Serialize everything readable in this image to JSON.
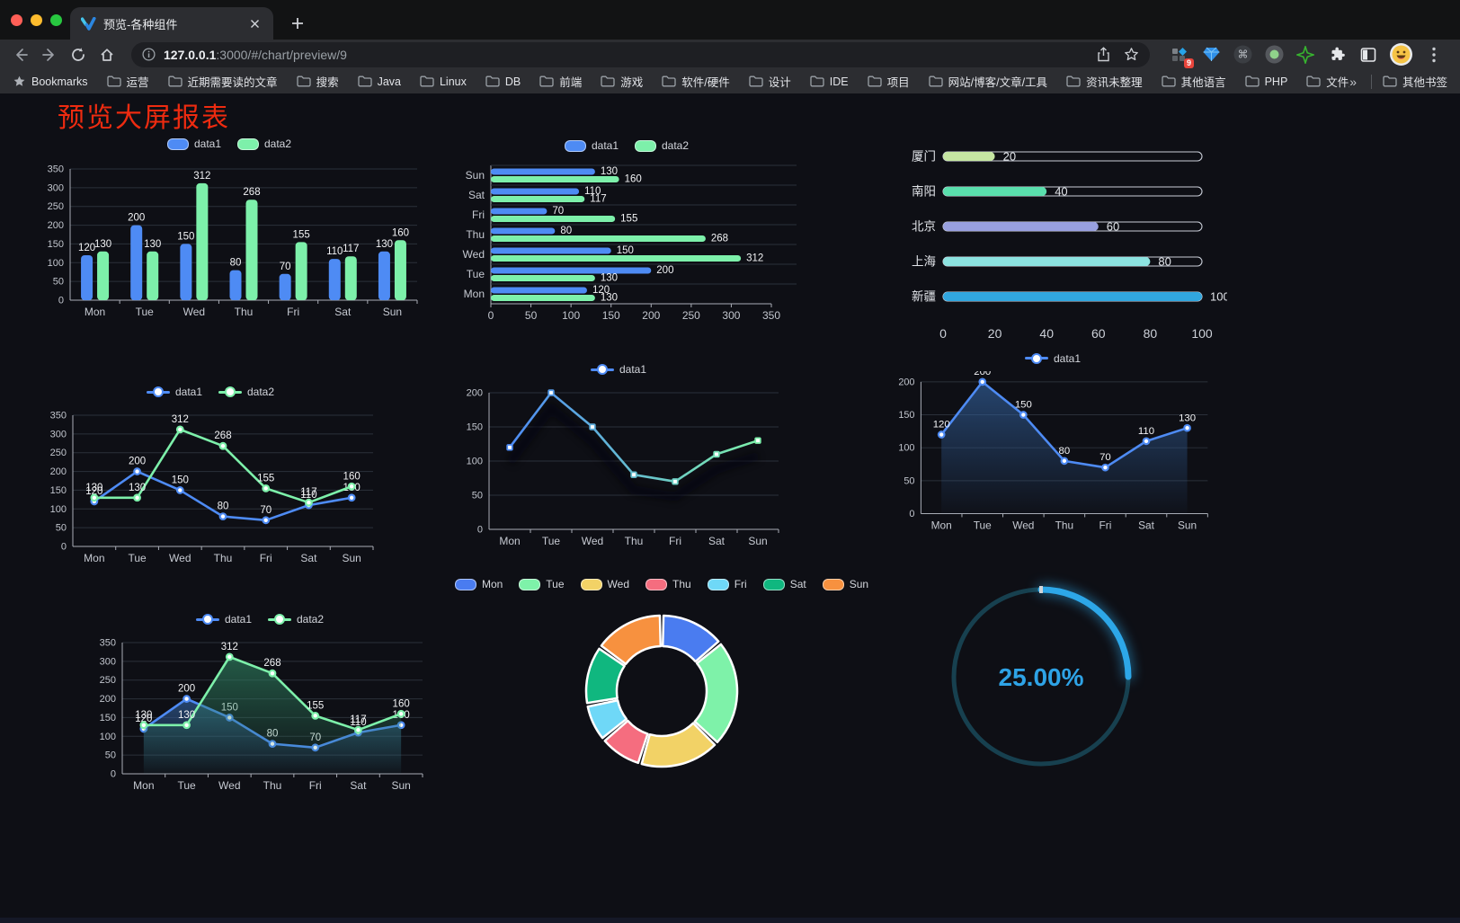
{
  "browser": {
    "tab_title": "预览-各种组件",
    "url_host": "127.0.0.1",
    "url_rest": ":3000/#/chart/preview/9",
    "bookmarks_label": "Bookmarks",
    "bookmarks": [
      "运营",
      "近期需要读的文章",
      "搜索",
      "Java",
      "Linux",
      "DB",
      "前端",
      "游戏",
      "软件/硬件",
      "设计",
      "IDE",
      "项目",
      "网站/博客/文章/工具",
      "资讯未整理",
      "其他语言",
      "PHP",
      "文件服务器"
    ],
    "bookmarks_overflow": "»",
    "other_bookmarks": "其他书签",
    "extension_badge": "9"
  },
  "page": {
    "title": "预览大屏报表"
  },
  "chart_data": [
    {
      "type": "bar",
      "categories": [
        "Mon",
        "Tue",
        "Wed",
        "Thu",
        "Fri",
        "Sat",
        "Sun"
      ],
      "series": [
        {
          "name": "data1",
          "color": "#4E8BF4",
          "values": [
            120,
            200,
            150,
            80,
            70,
            110,
            130
          ]
        },
        {
          "name": "data2",
          "color": "#7DF0AA",
          "values": [
            130,
            130,
            312,
            268,
            155,
            117,
            160
          ]
        }
      ],
      "ylim": [
        0,
        350
      ],
      "ytick": 50,
      "legend_position": "top",
      "grid": true,
      "show_labels": true
    },
    {
      "type": "bar-horizontal",
      "categories": [
        "Mon",
        "Tue",
        "Wed",
        "Thu",
        "Fri",
        "Sat",
        "Sun"
      ],
      "series": [
        {
          "name": "data1",
          "color": "#4E8BF4",
          "values": [
            120,
            200,
            150,
            80,
            70,
            110,
            130
          ]
        },
        {
          "name": "data2",
          "color": "#7DF0AA",
          "values": [
            130,
            130,
            312,
            268,
            155,
            117,
            160
          ]
        }
      ],
      "xlim": [
        0,
        350
      ],
      "xtick": 50,
      "legend_position": "top",
      "show_labels": true
    },
    {
      "type": "progress",
      "items": [
        {
          "label": "厦门",
          "value": 20,
          "color": "#C5E6A2"
        },
        {
          "label": "南阳",
          "value": 40,
          "color": "#5ADFAD"
        },
        {
          "label": "北京",
          "value": 60,
          "color": "#98A0DF"
        },
        {
          "label": "上海",
          "value": 80,
          "color": "#8CE3E0"
        },
        {
          "label": "新疆",
          "value": 100,
          "color": "#31A6DE"
        }
      ],
      "xlim": [
        0,
        100
      ],
      "axis_ticks": [
        0,
        20,
        40,
        60,
        80,
        100
      ]
    },
    {
      "type": "line",
      "categories": [
        "Mon",
        "Tue",
        "Wed",
        "Thu",
        "Fri",
        "Sat",
        "Sun"
      ],
      "series": [
        {
          "name": "data1",
          "color": "#4E8BF4",
          "values": [
            120,
            200,
            150,
            80,
            70,
            110,
            130
          ]
        },
        {
          "name": "data2",
          "color": "#7DF0AA",
          "values": [
            130,
            130,
            312,
            268,
            155,
            117,
            160
          ]
        }
      ],
      "ylim": [
        0,
        350
      ],
      "ytick": 50,
      "legend_position": "top",
      "show_labels": true
    },
    {
      "type": "line-gradient",
      "categories": [
        "Mon",
        "Tue",
        "Wed",
        "Thu",
        "Fri",
        "Sat",
        "Sun"
      ],
      "series": [
        {
          "name": "data1",
          "color": "#4E8BF4",
          "color2": "#7DF0AA",
          "values": [
            120,
            200,
            150,
            80,
            70,
            110,
            130
          ]
        }
      ],
      "ylim": [
        0,
        200
      ],
      "ytick": 50,
      "legend_position": "top",
      "show_labels": false
    },
    {
      "type": "area",
      "categories": [
        "Mon",
        "Tue",
        "Wed",
        "Thu",
        "Fri",
        "Sat",
        "Sun"
      ],
      "series": [
        {
          "name": "data1",
          "color": "#4E8BF4",
          "values": [
            120,
            200,
            150,
            80,
            70,
            110,
            130
          ]
        }
      ],
      "ylim": [
        0,
        200
      ],
      "ytick": 50,
      "legend_position": "top",
      "show_labels": true
    },
    {
      "type": "area",
      "categories": [
        "Mon",
        "Tue",
        "Wed",
        "Thu",
        "Fri",
        "Sat",
        "Sun"
      ],
      "series": [
        {
          "name": "data1",
          "color": "#4E8BF4",
          "values": [
            120,
            200,
            150,
            80,
            70,
            110,
            130
          ]
        },
        {
          "name": "data2",
          "color": "#7DF0AA",
          "values": [
            130,
            130,
            312,
            268,
            155,
            117,
            160
          ]
        }
      ],
      "ylim": [
        0,
        350
      ],
      "ytick": 50,
      "legend_position": "top",
      "show_labels": true
    },
    {
      "type": "pie-donut",
      "categories": [
        "Mon",
        "Tue",
        "Wed",
        "Thu",
        "Fri",
        "Sat",
        "Sun"
      ],
      "values": [
        120,
        200,
        150,
        80,
        70,
        110,
        130
      ],
      "colors": [
        "#4A7CF0",
        "#7EF2A9",
        "#F2D266",
        "#F56D7F",
        "#6FD8F7",
        "#10B77F",
        "#F7913F"
      ],
      "legend_position": "top"
    },
    {
      "type": "gauge",
      "label": "25.00%",
      "percent": 25,
      "color": "#2DA7E8",
      "track_color": "#17404F"
    }
  ]
}
